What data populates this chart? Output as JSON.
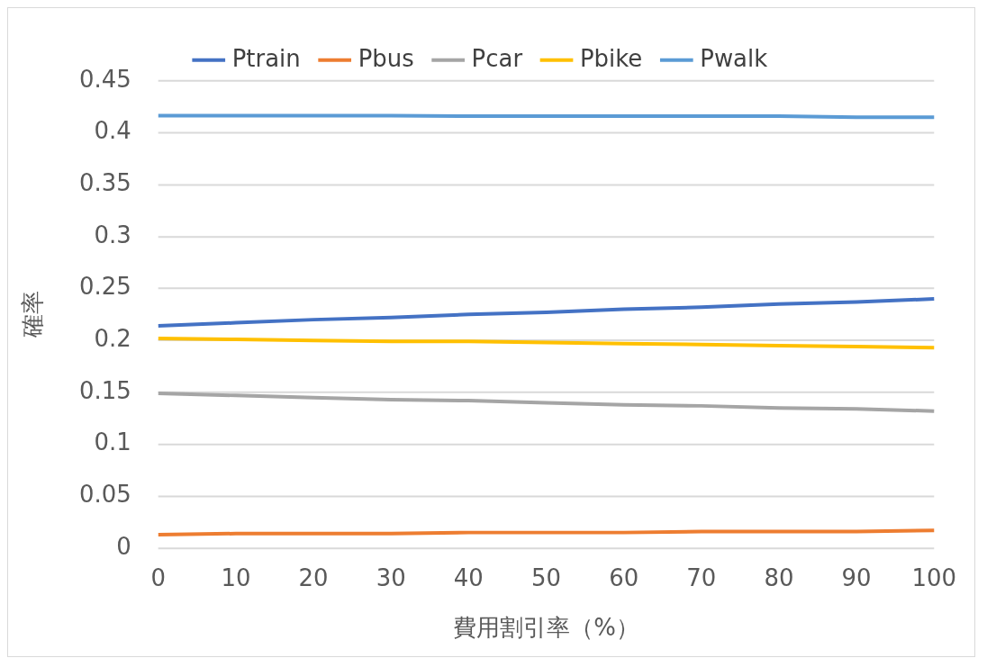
{
  "chart_data": {
    "type": "line",
    "xlabel": "費用割引率（%）",
    "ylabel": "確率",
    "categories": [
      "0",
      "10",
      "20",
      "30",
      "40",
      "50",
      "60",
      "70",
      "80",
      "90",
      "100"
    ],
    "ylim": [
      0,
      0.45
    ],
    "yticks": [
      0,
      0.05,
      0.1,
      0.15,
      0.2,
      0.25,
      0.3,
      0.35,
      0.4,
      0.45
    ],
    "grid": "y",
    "legend": "top",
    "marker": "none",
    "line_style": "solid",
    "series": [
      {
        "name": "Ptrain",
        "color": "#4472c4",
        "values": [
          0.214,
          0.217,
          0.22,
          0.222,
          0.225,
          0.227,
          0.23,
          0.232,
          0.235,
          0.237,
          0.24
        ]
      },
      {
        "name": "Pbus",
        "color": "#ed7d31",
        "values": [
          0.013,
          0.014,
          0.014,
          0.014,
          0.015,
          0.015,
          0.015,
          0.016,
          0.016,
          0.016,
          0.017
        ]
      },
      {
        "name": "Pcar",
        "color": "#a5a5a5",
        "values": [
          0.149,
          0.147,
          0.145,
          0.143,
          0.142,
          0.14,
          0.138,
          0.137,
          0.135,
          0.134,
          0.132
        ]
      },
      {
        "name": "Pbike",
        "color": "#ffc000",
        "values": [
          0.202,
          0.201,
          0.2,
          0.199,
          0.199,
          0.198,
          0.197,
          0.196,
          0.195,
          0.194,
          0.193
        ]
      },
      {
        "name": "Pwalk",
        "color": "#5b9bd5",
        "values": [
          0.4165,
          0.4165,
          0.4165,
          0.4165,
          0.416,
          0.416,
          0.416,
          0.416,
          0.416,
          0.415,
          0.415
        ]
      }
    ]
  }
}
